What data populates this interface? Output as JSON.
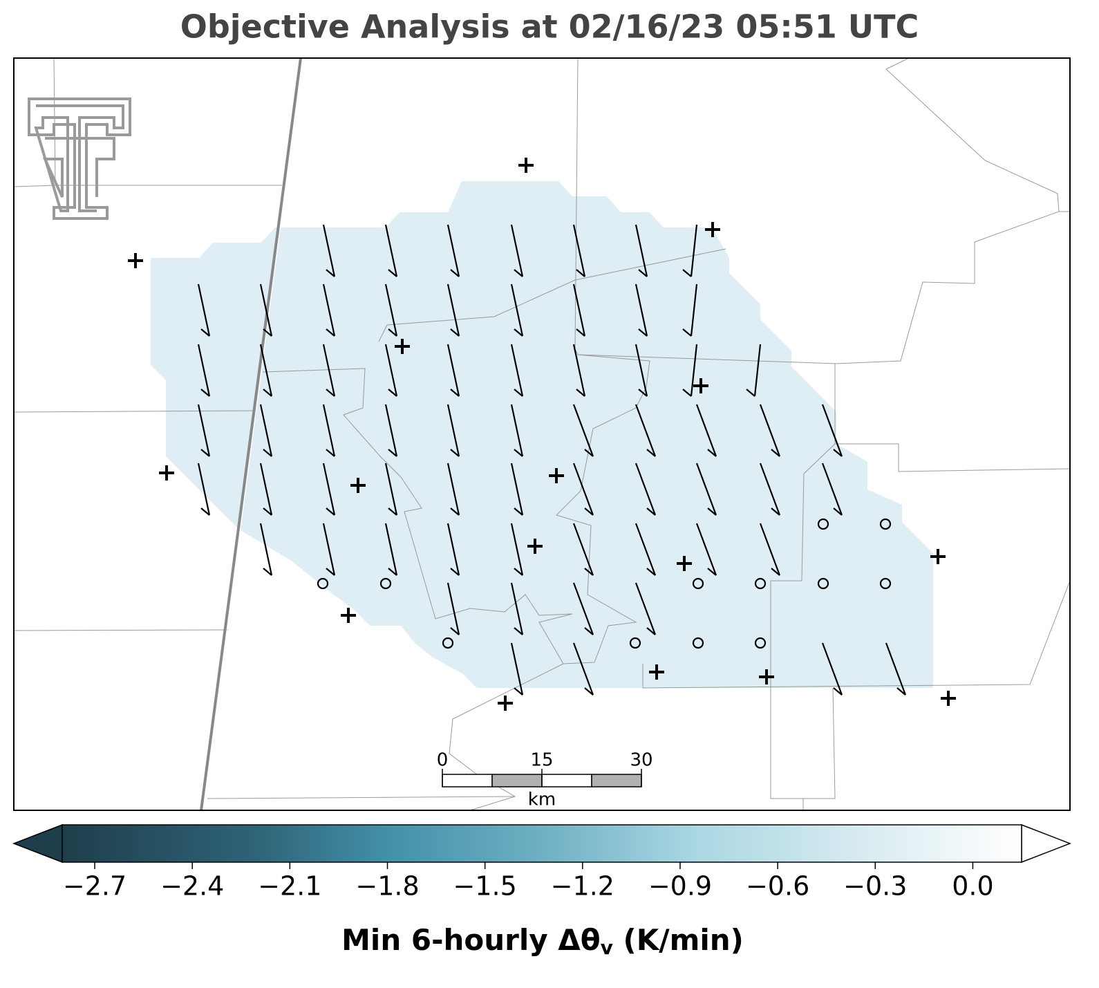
{
  "title": "Objective Analysis at 02/16/23 05:51 UTC",
  "colorbar": {
    "label": {
      "text": "Min 6-hourly Δθ",
      "subscript": "v",
      "suffix": " (K/min)"
    },
    "lim": [
      -2.8,
      0.15
    ],
    "ticks": [
      {
        "value": -2.7,
        "label": "−2.7"
      },
      {
        "value": -2.4,
        "label": "−2.4"
      },
      {
        "value": -2.1,
        "label": "−2.1"
      },
      {
        "value": -1.8,
        "label": "−1.8"
      },
      {
        "value": -1.5,
        "label": "−1.5"
      },
      {
        "value": -1.2,
        "label": "−1.2"
      },
      {
        "value": -0.9,
        "label": "−0.9"
      },
      {
        "value": -0.6,
        "label": "−0.6"
      },
      {
        "value": -0.3,
        "label": "−0.3"
      },
      {
        "value": 0,
        "label": "0.0"
      }
    ]
  },
  "scale_bar": {
    "ticks": [
      0,
      15,
      30
    ],
    "unit": "km"
  }
}
